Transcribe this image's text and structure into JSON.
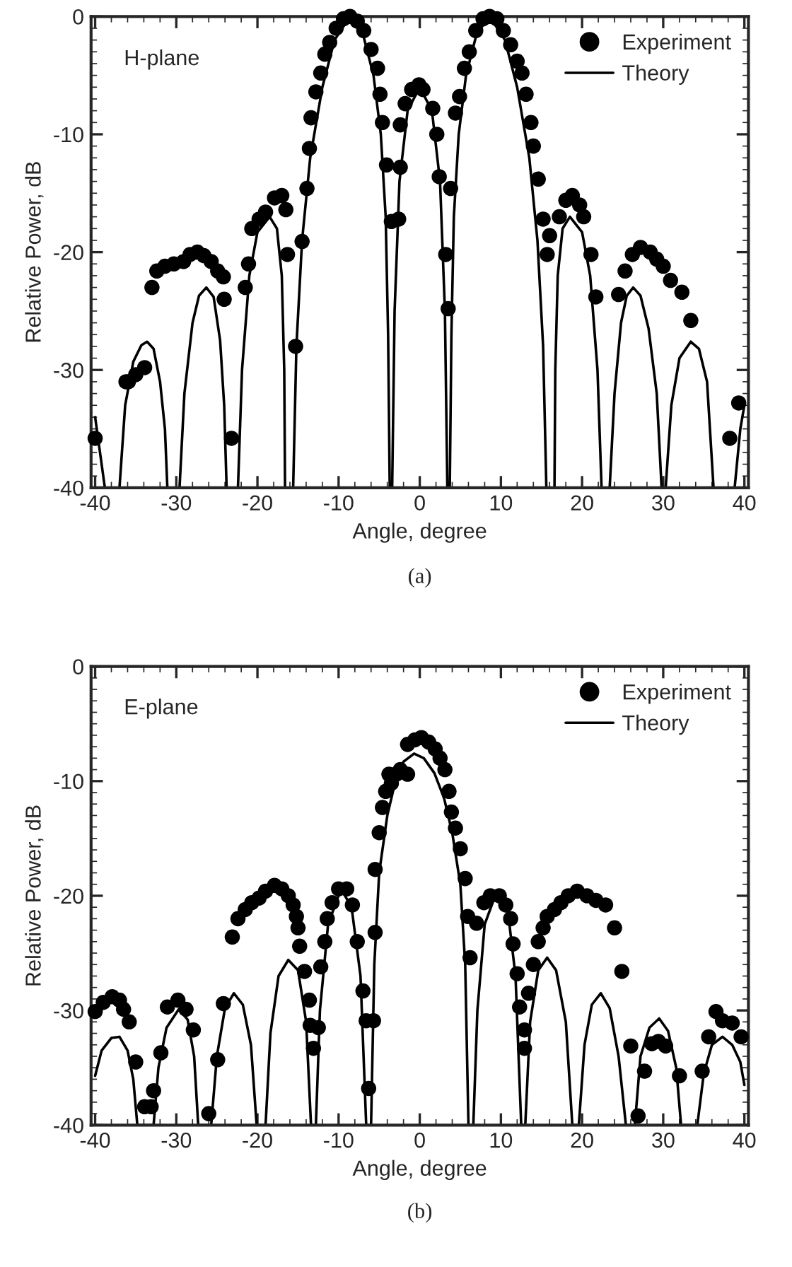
{
  "chart_data": [
    {
      "type": "scatter",
      "xlabel": "Angle, degree",
      "ylabel": "Relative Power, dB",
      "annotations": [
        "H-plane",
        "(a)"
      ],
      "xlim": [
        -40.5,
        40.5
      ],
      "ylim": [
        -40,
        0
      ],
      "xticks": [
        -40,
        -30,
        -20,
        -10,
        0,
        10,
        20,
        30,
        40
      ],
      "yticks": [
        -40,
        -30,
        -20,
        -10,
        0
      ],
      "legend": "top right",
      "grid": false,
      "series": [
        {
          "name": "Experiment",
          "marker": "circle",
          "color": "#000000",
          "x": [
            -40,
            -36.2,
            -35.9,
            -35,
            -33.9,
            -33,
            -32.4,
            -31.4,
            -30.3,
            -29.1,
            -28.3,
            -27.4,
            -26.6,
            -25.7,
            -24.9,
            -24.2,
            -24.1,
            -23.2,
            -21.5,
            -21.1,
            -20.7,
            -19.8,
            -19,
            -17.9,
            -17,
            -16.5,
            -16.3,
            -15.3,
            -14.5,
            -13.9,
            -13.6,
            -13.4,
            -12.8,
            -12.2,
            -11.7,
            -11.1,
            -10.3,
            -9.4,
            -8.6,
            -7.7,
            -6.9,
            -6,
            -5.2,
            -4.9,
            -4.6,
            -4.1,
            -3.5,
            -2.6,
            -2.4,
            -2.4,
            -1.8,
            -1,
            -0.1,
            0.4,
            1.6,
            2.1,
            2.4,
            3.8,
            3.2,
            3.5,
            4.4,
            4.9,
            5.5,
            6.1,
            6.9,
            7.8,
            8.6,
            9.5,
            10.3,
            11.2,
            12,
            12.6,
            13.1,
            13.7,
            14,
            14.6,
            15.2,
            15.7,
            16,
            17.2,
            18,
            18.8,
            19.7,
            20.2,
            21.1,
            21.7,
            24.5,
            25.3,
            26.2,
            27.2,
            28.4,
            29.2,
            30,
            30.9,
            32.3,
            33.4,
            38.2,
            39.3
          ],
          "values": [
            -35.8,
            -31,
            -31,
            -30.4,
            -29.8,
            -23,
            -21.6,
            -21.2,
            -21,
            -20.8,
            -20.2,
            -20,
            -20.3,
            -20.8,
            -21.6,
            -22.1,
            -24,
            -35.8,
            -23,
            -21,
            -18,
            -17.2,
            -16.6,
            -15.4,
            -15.2,
            -16.4,
            -20.2,
            -28,
            -19.1,
            -14.6,
            -11.2,
            -8.6,
            -6.4,
            -4.8,
            -3.2,
            -2.2,
            -1,
            -0.2,
            0,
            -0.4,
            -1.2,
            -2.8,
            -4.4,
            -6.6,
            -9,
            -12.6,
            -17.4,
            -17.2,
            -12.8,
            -9.2,
            -7.4,
            -6.2,
            -5.8,
            -6.2,
            -7.8,
            -10,
            -13.6,
            -14.6,
            -20.2,
            -24.8,
            -8.2,
            -6.8,
            -4.4,
            -3,
            -1.2,
            -0.2,
            0,
            -0.2,
            -1.2,
            -2.4,
            -3.8,
            -4.8,
            -6.6,
            -9,
            -11,
            -13.8,
            -17.2,
            -20.2,
            -18.6,
            -17,
            -15.6,
            -15.2,
            -16,
            -17,
            -20.2,
            -23.8,
            -23.6,
            -21.6,
            -20.2,
            -19.6,
            -20,
            -20.6,
            -21.2,
            -22.4,
            -23.4,
            -25.8,
            -35.8,
            -32.8
          ]
        },
        {
          "name": "Theory",
          "type": "line",
          "line_style": "solid",
          "color": "#000000",
          "x": [
            -40,
            -38.8,
            -37,
            -36.3,
            -35.3,
            -34.3,
            -33.6,
            -32.8,
            -32,
            -31.4,
            -31.1,
            -29.6,
            -29,
            -28,
            -27.2,
            -26.3,
            -25.4,
            -24.6,
            -24.1,
            -23.8,
            -22.4,
            -21.9,
            -21,
            -20,
            -18.5,
            -17.6,
            -17,
            -16.7,
            -16.6,
            -15.6,
            -15.2,
            -14.5,
            -13.5,
            -12,
            -10.5,
            -8.6,
            -7,
            -5.7,
            -4.8,
            -4.2,
            -3.9,
            -3.7,
            -3.4,
            -3.1,
            -2.5,
            -1.5,
            0,
            1.5,
            2.5,
            3.1,
            3.4,
            3.7,
            3.9,
            4.2,
            4.8,
            5.7,
            7,
            8.6,
            10.5,
            12,
            13.5,
            14.5,
            15.2,
            15.6,
            16.6,
            16.7,
            17,
            17.6,
            18.5,
            20,
            21,
            21.9,
            22.4,
            23.4,
            24,
            24.8,
            25.5,
            26.3,
            27.2,
            28.2,
            29.2,
            29.8,
            30.3,
            31,
            32,
            33.4,
            34.4,
            35.4,
            36.2,
            38.8,
            39.5,
            40
          ],
          "values": [
            -34,
            -40,
            -40,
            -33,
            -29.3,
            -27.9,
            -27.6,
            -28.2,
            -31,
            -35,
            -40,
            -40,
            -32,
            -26,
            -23.7,
            -23,
            -23.8,
            -27.5,
            -33,
            -40,
            -40,
            -30,
            -22,
            -18.3,
            -17,
            -18,
            -22,
            -30,
            -40,
            -40,
            -28,
            -19,
            -12,
            -6,
            -2,
            0,
            -1.5,
            -5,
            -10,
            -17,
            -27,
            -40,
            -40,
            -25,
            -14,
            -8,
            -6,
            -8,
            -14,
            -25,
            -40,
            -40,
            -27,
            -17,
            -10,
            -5,
            -1.5,
            0,
            -2,
            -6,
            -12,
            -19,
            -28,
            -40,
            -40,
            -30,
            -22,
            -18,
            -17,
            -18.3,
            -22,
            -30,
            -40,
            -40,
            -32,
            -26,
            -23.7,
            -23,
            -23.7,
            -26.5,
            -32,
            -40,
            -40,
            -33,
            -29,
            -27.6,
            -28.2,
            -31,
            -40,
            -40,
            -35,
            -33
          ]
        }
      ]
    },
    {
      "type": "scatter",
      "xlabel": "Angle, degree",
      "ylabel": "Relative Power, dB",
      "annotations": [
        "E-plane",
        "(b)"
      ],
      "xlim": [
        -40.5,
        40.5
      ],
      "ylim": [
        -40,
        0
      ],
      "xticks": [
        -40,
        -30,
        -20,
        -10,
        0,
        10,
        20,
        30,
        40
      ],
      "yticks": [
        -40,
        -30,
        -20,
        -10,
        0
      ],
      "legend": "top right",
      "grid": false,
      "series": [
        {
          "name": "Experiment",
          "marker": "circle",
          "color": "#000000",
          "x": [
            -40,
            -39,
            -37.9,
            -37,
            -36.5,
            -35.8,
            -35,
            -33.9,
            -33.1,
            -32.8,
            -31.9,
            -31.1,
            -29.8,
            -28.8,
            -27.9,
            -26,
            -24.9,
            -24.2,
            -23.1,
            -22.4,
            -21.5,
            -20.7,
            -19.8,
            -19,
            -17.9,
            -17,
            -16.2,
            -15.6,
            -15.2,
            -15,
            -14.8,
            -14.2,
            -13.6,
            -13.5,
            -13.1,
            -12.5,
            -12.2,
            -11.7,
            -11.4,
            -10.8,
            -10,
            -9,
            -8.3,
            -7.7,
            -7,
            -6.6,
            -6.3,
            -5.7,
            -5.5,
            -5.5,
            -5,
            -4.6,
            -4.2,
            -3.8,
            -3.5,
            -2.9,
            -2.4,
            -1.5,
            -1.5,
            -0.6,
            0.2,
            1.1,
            1.9,
            2.5,
            3.1,
            3.6,
            3.9,
            4.4,
            5,
            5.6,
            5.9,
            6.2,
            7,
            7.9,
            8.7,
            9.8,
            10.6,
            11.2,
            11.5,
            12,
            12.3,
            12.9,
            12.9,
            13.4,
            14,
            14.6,
            15.2,
            15.7,
            16.6,
            17.4,
            18.3,
            19.4,
            20.6,
            21.7,
            22.9,
            24,
            24.9,
            26,
            26.9,
            27.7,
            28.6,
            29.4,
            30.3,
            32,
            34.8,
            35.6,
            36.5,
            37.3,
            38.5,
            39.6
          ],
          "values": [
            -30.1,
            -29.3,
            -28.8,
            -29.1,
            -29.9,
            -31,
            -34.5,
            -38.4,
            -38.4,
            -37,
            -33.7,
            -29.7,
            -29.1,
            -29.9,
            -31.7,
            -39,
            -34.3,
            -29.4,
            -23.6,
            -22,
            -21.2,
            -20.6,
            -20.2,
            -19.6,
            -19.1,
            -19.4,
            -20,
            -20.8,
            -21.8,
            -22.8,
            -24.4,
            -26.6,
            -29.1,
            -31.3,
            -33.3,
            -31.5,
            -26.2,
            -24,
            -22,
            -20.6,
            -19.4,
            -19.4,
            -20.8,
            -24,
            -28.3,
            -30.9,
            -36.8,
            -30.9,
            -23.2,
            -17.7,
            -14.5,
            -12.3,
            -10.9,
            -9.4,
            -10.2,
            -9.4,
            -9,
            -9.4,
            -6.8,
            -6.4,
            -6.2,
            -6.6,
            -7.2,
            -8,
            -9,
            -10.9,
            -12.7,
            -14.1,
            -15.9,
            -18.5,
            -21.8,
            -25.4,
            -22.4,
            -20.6,
            -20,
            -20,
            -20.8,
            -22,
            -24.2,
            -26.8,
            -29.7,
            -31.7,
            -33.3,
            -28.5,
            -26,
            -24,
            -22.8,
            -21.8,
            -21.2,
            -20.6,
            -20,
            -19.6,
            -20,
            -20.4,
            -20.8,
            -22.8,
            -26.6,
            -33.1,
            -39.2,
            -35.3,
            -32.9,
            -32.7,
            -33.1,
            -35.7,
            -35.3,
            -32.3,
            -30.1,
            -30.9,
            -31.1,
            -32.3
          ]
        },
        {
          "name": "Theory",
          "type": "line",
          "line_style": "solid",
          "color": "#000000",
          "x": [
            -40,
            -39.2,
            -38,
            -37,
            -36,
            -35.3,
            -34.8,
            -32.8,
            -32.2,
            -31.2,
            -29.7,
            -28.6,
            -27.8,
            -27.3,
            -25.7,
            -25,
            -24,
            -22.9,
            -21.8,
            -20.8,
            -20.1,
            -19,
            -18.4,
            -17.4,
            -16.2,
            -15,
            -14,
            -13.4,
            -12.8,
            -12.3,
            -11.3,
            -9.7,
            -8.4,
            -7.3,
            -6.6,
            -6,
            -5.6,
            -5,
            -4,
            -3,
            -2,
            -0.7,
            0.5,
            1.8,
            3,
            4,
            5,
            5.6,
            6,
            6.6,
            7.1,
            8,
            9.5,
            10.8,
            11.8,
            12.5,
            13,
            13.6,
            14.6,
            15.7,
            16.8,
            18,
            18.8,
            19.6,
            20.3,
            21.2,
            22.3,
            23.4,
            24.5,
            25.4,
            26.5,
            27.2,
            28.3,
            29.5,
            30.6,
            31.6,
            32.2,
            34.2,
            35,
            36,
            37.3,
            38.5,
            39.5,
            40
          ],
          "values": [
            -35.7,
            -33.5,
            -32.4,
            -32.3,
            -33.5,
            -36,
            -40,
            -40,
            -35,
            -31.5,
            -29.9,
            -30.8,
            -34,
            -40,
            -40,
            -34,
            -29.8,
            -28.5,
            -29.5,
            -33,
            -40,
            -40,
            -32,
            -27,
            -25.6,
            -26.5,
            -31,
            -40,
            -40,
            -30,
            -22.5,
            -19.4,
            -21,
            -27,
            -40,
            -40,
            -26,
            -18,
            -13,
            -10,
            -8.3,
            -7.6,
            -8,
            -9.3,
            -11.5,
            -14.5,
            -19,
            -26,
            -40,
            -40,
            -30,
            -22.5,
            -19.6,
            -21,
            -27,
            -40,
            -40,
            -31,
            -26.5,
            -25.4,
            -26.5,
            -31,
            -40,
            -40,
            -33,
            -29.5,
            -28.5,
            -29.8,
            -34,
            -40,
            -40,
            -34,
            -31.5,
            -30.7,
            -31.8,
            -35,
            -40,
            -40,
            -35.5,
            -33,
            -32.3,
            -33,
            -34.5,
            -36.5
          ]
        }
      ]
    }
  ]
}
